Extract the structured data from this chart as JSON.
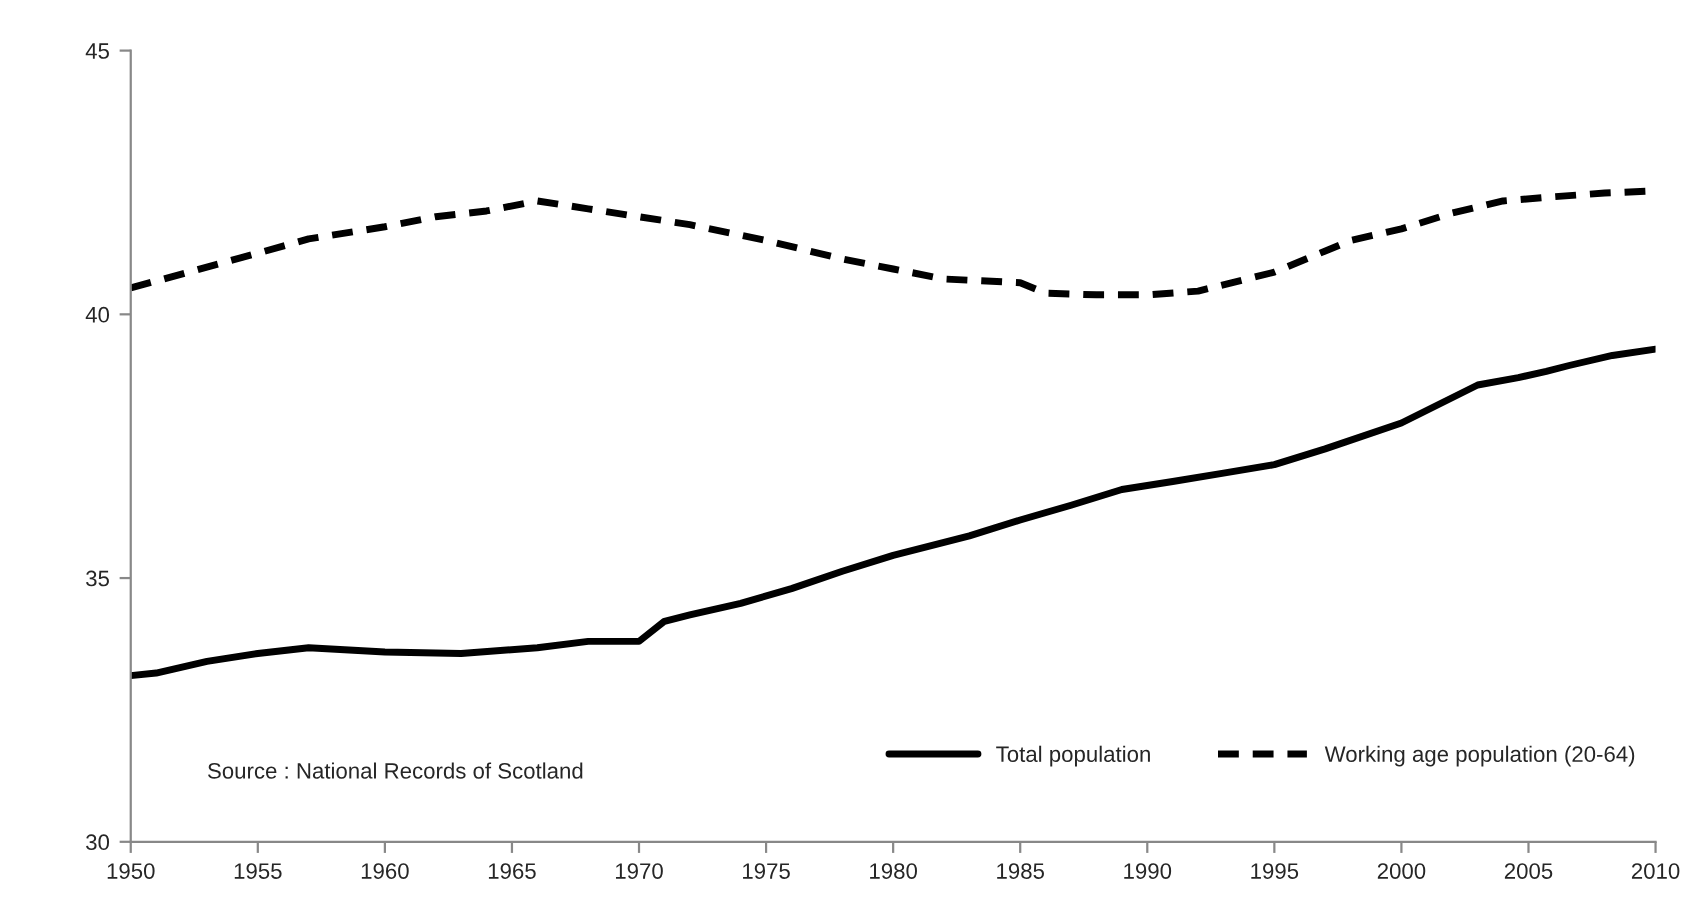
{
  "chart_data": {
    "type": "line",
    "series": [
      {
        "name": "Total population",
        "color": "#000000",
        "line_style": "solid",
        "x": [
          1950,
          1951,
          1953,
          1955,
          1957,
          1960,
          1963,
          1966,
          1968,
          1970,
          1971,
          1972,
          1974,
          1976,
          1978,
          1980,
          1983,
          1985,
          1987,
          1989,
          1991,
          1993,
          1995,
          1997,
          2000,
          2003,
          2004.6,
          2005.7,
          2006.6,
          2008.3,
          2010
        ],
        "values": [
          33.15,
          33.2,
          33.42,
          33.57,
          33.68,
          33.6,
          33.57,
          33.68,
          33.8,
          33.8,
          34.18,
          34.3,
          34.52,
          34.8,
          35.13,
          35.43,
          35.8,
          36.1,
          36.38,
          36.68,
          36.83,
          36.99,
          37.15,
          37.45,
          37.94,
          38.66,
          38.8,
          38.92,
          39.03,
          39.22,
          39.34
        ]
      },
      {
        "name": "Working age population (20-64)",
        "color": "#000000",
        "line_style": "dashed",
        "x": [
          1950,
          1955,
          1957,
          1960,
          1962,
          1964,
          1966,
          1968,
          1970,
          1972,
          1975,
          1978,
          1980,
          1982,
          1985,
          1986,
          1988,
          1990,
          1992,
          1995,
          1998,
          2000,
          2002,
          2004,
          2006,
          2008,
          2010
        ],
        "values": [
          40.5,
          41.16,
          41.43,
          41.66,
          41.85,
          41.96,
          42.15,
          42.0,
          41.85,
          41.7,
          41.4,
          41.05,
          40.86,
          40.67,
          40.6,
          40.4,
          40.37,
          40.37,
          40.44,
          40.8,
          41.4,
          41.62,
          41.92,
          42.15,
          42.23,
          42.3,
          42.34
        ]
      }
    ],
    "xlim": [
      1950,
      2010
    ],
    "xticks": [
      1950,
      1955,
      1960,
      1965,
      1970,
      1975,
      1980,
      1985,
      1990,
      1995,
      2000,
      2005,
      2010
    ],
    "ylim": [
      30,
      45
    ],
    "yticks": [
      30,
      35,
      40,
      45
    ],
    "grid": false,
    "legend": "bottom right",
    "annotations": [
      "Source : National Records of Scotland"
    ]
  }
}
